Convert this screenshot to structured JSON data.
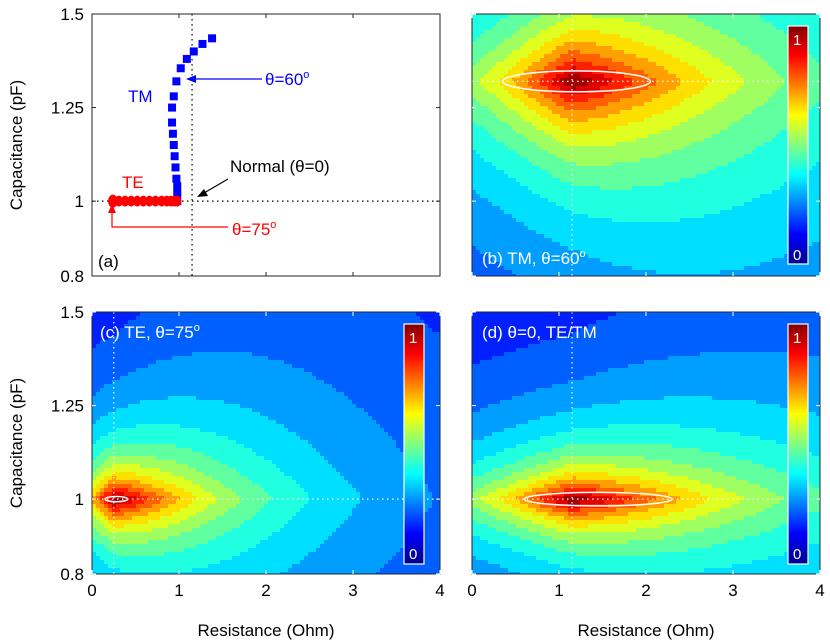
{
  "figure": {
    "ylabel": "Capacitance (pF)",
    "xlabel": "Resistance (Ohm)",
    "x_ticks": [
      "0",
      "1",
      "2",
      "3",
      "4"
    ],
    "y_ticks": [
      "0.8",
      "1",
      "1.25",
      "1.5"
    ]
  },
  "chart_data": [
    {
      "panel": "a",
      "type": "scatter",
      "panel_label": "(a)",
      "xlabel": "",
      "ylabel": "Capacitance (pF)",
      "xlim": [
        0,
        4
      ],
      "ylim": [
        0.8,
        1.5
      ],
      "reference_lines": {
        "x": 1.15,
        "y": 1.0
      },
      "series": [
        {
          "name": "TM",
          "color": "#0000ff",
          "marker": "square",
          "x": [
            0.98,
            0.98,
            0.98,
            0.97,
            0.96,
            0.95,
            0.94,
            0.93,
            0.92,
            0.92,
            0.94,
            0.97,
            1.02,
            1.09,
            1.17,
            1.27,
            1.38
          ],
          "y": [
            1.0,
            1.02,
            1.04,
            1.06,
            1.09,
            1.12,
            1.15,
            1.18,
            1.21,
            1.25,
            1.28,
            1.32,
            1.355,
            1.38,
            1.4,
            1.42,
            1.435
          ]
        },
        {
          "name": "TE",
          "color": "#ff0000",
          "marker": "circle",
          "x": [
            0.24,
            0.31,
            0.38,
            0.45,
            0.52,
            0.59,
            0.66,
            0.73,
            0.8,
            0.86,
            0.91,
            0.95,
            0.98
          ],
          "y": [
            1.0,
            1.0,
            1.0,
            1.0,
            1.0,
            1.0,
            1.0,
            1.0,
            1.0,
            1.0,
            1.0,
            1.0,
            1.0
          ]
        }
      ],
      "annotations": {
        "tm_label": "TM",
        "te_label": "TE",
        "theta60": "θ=60",
        "theta75": "θ=75",
        "normal": "Normal (θ=0)",
        "degree": "o"
      }
    },
    {
      "panel": "b",
      "type": "heatmap",
      "label_main": "(b) TM, θ=60",
      "degree": "o",
      "xlim": [
        0,
        4
      ],
      "ylim": [
        0.8,
        1.5
      ],
      "peak": {
        "x": 1.15,
        "y": 1.32
      },
      "contour": {
        "cx": 1.2,
        "cy": 1.32,
        "rx": 0.85,
        "ry": 0.028
      },
      "colorbar": {
        "min": "0",
        "max": "1"
      }
    },
    {
      "panel": "c",
      "type": "heatmap",
      "label_main": "(c) TE, θ=75",
      "degree": "o",
      "xlim": [
        0,
        4
      ],
      "ylim": [
        0.8,
        1.5
      ],
      "peak": {
        "x": 0.25,
        "y": 1.0
      },
      "contour": {
        "cx": 0.28,
        "cy": 1.0,
        "rx": 0.13,
        "ry": 0.007
      },
      "colorbar": {
        "min": "0",
        "max": "1"
      }
    },
    {
      "panel": "d",
      "type": "heatmap",
      "label_main": "(d) θ=0, TE/TM",
      "degree": "",
      "xlim": [
        0,
        4
      ],
      "ylim": [
        0.8,
        1.5
      ],
      "peak": {
        "x": 1.15,
        "y": 1.0
      },
      "contour": {
        "cx": 1.45,
        "cy": 1.0,
        "rx": 0.85,
        "ry": 0.018
      },
      "colorbar": {
        "min": "0",
        "max": "1"
      }
    }
  ]
}
